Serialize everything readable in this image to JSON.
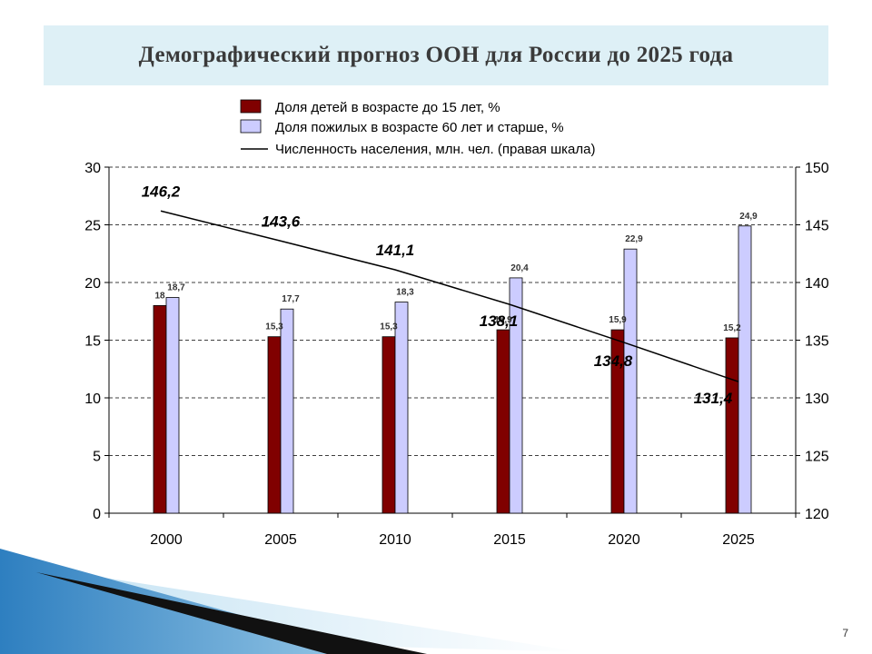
{
  "slide": {
    "title": "Демографический прогноз ООН  для России до 2025 года",
    "page_number": "7"
  },
  "colors": {
    "children": "#800000",
    "elderly": "#ccccff",
    "line": "#000000",
    "title_band": "#def0f6"
  },
  "chart_data": {
    "type": "bar",
    "title": "Демографический прогноз ООН  для России до 2025 года",
    "categories": [
      "2000",
      "2005",
      "2010",
      "2015",
      "2020",
      "2025"
    ],
    "series": [
      {
        "name": "Доля детей в возрасте до 15 лет, %",
        "type": "bar",
        "axis": "left",
        "values": [
          18,
          15.3,
          15.3,
          15.9,
          15.9,
          15.2
        ],
        "labels": [
          "18",
          "15,3",
          "15,3",
          "15,9",
          "15,9",
          "15,2"
        ]
      },
      {
        "name": "Доля пожилых в возрасте 60 лет и старше, %",
        "type": "bar",
        "axis": "left",
        "values": [
          18.7,
          17.7,
          18.3,
          20.4,
          22.9,
          24.9
        ],
        "labels": [
          "18,7",
          "17,7",
          "18,3",
          "20,4",
          "22,9",
          "24,9"
        ]
      },
      {
        "name": "Численность населения, млн. чел. (правая шкала)",
        "type": "line",
        "axis": "right",
        "values": [
          146.2,
          143.6,
          141.1,
          138.1,
          134.8,
          131.4
        ],
        "labels": [
          "146,2",
          "143,6",
          "141,1",
          "138,1",
          "134,8",
          "131,4"
        ]
      }
    ],
    "y_left": {
      "min": 0,
      "max": 30,
      "ticks": [
        "0",
        "5",
        "10",
        "15",
        "20",
        "25",
        "30"
      ]
    },
    "y_right": {
      "min": 120,
      "max": 150,
      "ticks": [
        "120",
        "125",
        "130",
        "135",
        "140",
        "145",
        "150"
      ]
    },
    "grid": "horizontal dashed",
    "legend_position": "top"
  }
}
